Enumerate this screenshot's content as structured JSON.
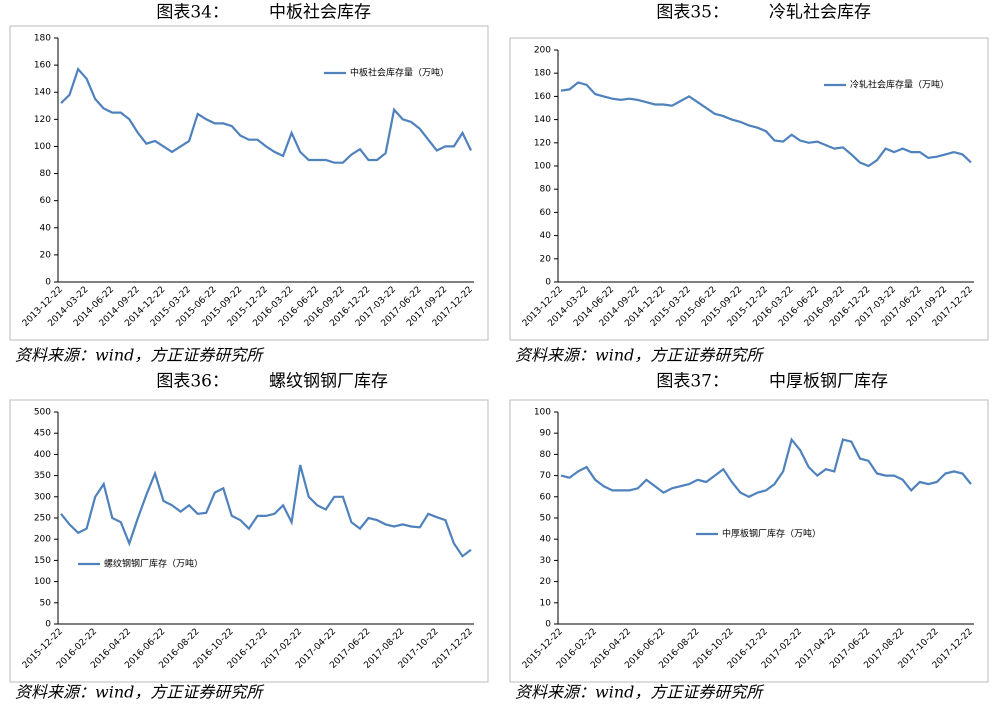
{
  "chart_data": [
    {
      "type": "line",
      "figure_label": "图表34：",
      "title": "中板社会库存",
      "source": "资料来源：wind，方正证券研究所",
      "categories": [
        "2013-12-22",
        null,
        null,
        "2014-03-22",
        null,
        null,
        "2014-06-22",
        null,
        null,
        "2014-09-22",
        null,
        null,
        "2014-12-22",
        null,
        null,
        "2015-03-22",
        null,
        null,
        "2015-06-22",
        null,
        null,
        "2015-09-22",
        null,
        null,
        "2015-12-22",
        null,
        null,
        "2016-03-22",
        null,
        null,
        "2016-06-22",
        null,
        null,
        "2016-09-22",
        null,
        null,
        "2016-12-22",
        null,
        null,
        "2017-03-22",
        null,
        null,
        "2017-06-22",
        null,
        null,
        "2017-09-22",
        null,
        null,
        "2017-12-22"
      ],
      "series": [
        {
          "name": "中板社会库存量（万吨）",
          "color": "#4f81bd",
          "values": [
            132,
            138,
            157,
            150,
            135,
            128,
            125,
            125,
            120,
            110,
            102,
            104,
            100,
            96,
            100,
            104,
            124,
            120,
            117,
            117,
            115,
            108,
            105,
            105,
            100,
            96,
            93,
            110,
            96,
            90,
            90,
            90,
            88,
            88,
            94,
            98,
            90,
            90,
            95,
            127,
            120,
            118,
            113,
            105,
            97,
            100,
            100,
            110,
            97
          ]
        }
      ],
      "ylim": [
        0,
        180
      ],
      "yticks": [
        0,
        20,
        40,
        60,
        80,
        100,
        120,
        140,
        160,
        180
      ],
      "legend": "upper right"
    },
    {
      "type": "line",
      "figure_label": "图表35：",
      "title": "冷轧社会库存",
      "source": "资料来源：wind，方正证券研究所",
      "categories": [
        "2013-12-22",
        null,
        null,
        "2014-03-22",
        null,
        null,
        "2014-06-22",
        null,
        null,
        "2014-09-22",
        null,
        null,
        "2014-12-22",
        null,
        null,
        "2015-03-22",
        null,
        null,
        "2015-06-22",
        null,
        null,
        "2015-09-22",
        null,
        null,
        "2015-12-22",
        null,
        null,
        "2016-03-22",
        null,
        null,
        "2016-06-22",
        null,
        null,
        "2016-09-22",
        null,
        null,
        "2016-12-22",
        null,
        null,
        "2017-03-22",
        null,
        null,
        "2017-06-22",
        null,
        null,
        "2017-09-22",
        null,
        null,
        "2017-12-22"
      ],
      "series": [
        {
          "name": "冷轧社会库存量（万吨）",
          "color": "#4f81bd",
          "values": [
            165,
            166,
            172,
            170,
            162,
            160,
            158,
            157,
            158,
            157,
            155,
            153,
            153,
            152,
            156,
            160,
            155,
            150,
            145,
            143,
            140,
            138,
            135,
            133,
            130,
            122,
            121,
            127,
            122,
            120,
            121,
            118,
            115,
            116,
            110,
            103,
            100,
            105,
            115,
            112,
            115,
            112,
            112,
            107,
            108,
            110,
            112,
            110,
            103
          ]
        }
      ],
      "ylim": [
        0,
        200
      ],
      "yticks": [
        0,
        20,
        40,
        60,
        80,
        100,
        120,
        140,
        160,
        180,
        200
      ],
      "legend": "upper right"
    },
    {
      "type": "line",
      "figure_label": "图表36：",
      "title": "螺纹钢钢厂库存",
      "source": "资料来源：wind，方正证券研究所",
      "categories": [
        "2015-12-22",
        null,
        null,
        null,
        "2016-02-22",
        null,
        null,
        null,
        "2016-04-22",
        null,
        null,
        null,
        "2016-06-22",
        null,
        null,
        null,
        "2016-08-22",
        null,
        null,
        null,
        "2016-10-22",
        null,
        null,
        null,
        "2016-12-22",
        null,
        null,
        null,
        "2017-02-22",
        null,
        null,
        null,
        "2017-04-22",
        null,
        null,
        null,
        "2017-06-22",
        null,
        null,
        null,
        "2017-08-22",
        null,
        null,
        null,
        "2017-10-22",
        null,
        null,
        null,
        "2017-12-22"
      ],
      "series": [
        {
          "name": "螺纹钢钢厂库存（万吨）",
          "color": "#4f81bd",
          "values": [
            260,
            235,
            215,
            225,
            300,
            330,
            250,
            240,
            190,
            250,
            305,
            355,
            290,
            280,
            265,
            280,
            260,
            262,
            310,
            320,
            255,
            245,
            225,
            255,
            255,
            260,
            280,
            240,
            375,
            300,
            280,
            270,
            300,
            300,
            240,
            225,
            250,
            245,
            235,
            230,
            235,
            230,
            228,
            260,
            252,
            245,
            190,
            160,
            175
          ]
        }
      ],
      "ylim": [
        0,
        500
      ],
      "yticks": [
        0,
        50,
        100,
        150,
        200,
        250,
        300,
        350,
        400,
        450,
        500
      ],
      "legend": "lower left"
    },
    {
      "type": "line",
      "figure_label": "图表37：",
      "title": "中厚板钢厂库存",
      "source": "资料来源：wind，方正证券研究所",
      "categories": [
        "2015-12-22",
        null,
        null,
        null,
        "2016-02-22",
        null,
        null,
        null,
        "2016-04-22",
        null,
        null,
        null,
        "2016-06-22",
        null,
        null,
        null,
        "2016-08-22",
        null,
        null,
        null,
        "2016-10-22",
        null,
        null,
        null,
        "2016-12-22",
        null,
        null,
        null,
        "2017-02-22",
        null,
        null,
        null,
        "2017-04-22",
        null,
        null,
        null,
        "2017-06-22",
        null,
        null,
        null,
        "2017-08-22",
        null,
        null,
        null,
        "2017-10-22",
        null,
        null,
        null,
        "2017-12-22"
      ],
      "series": [
        {
          "name": "中厚板钢厂库存（万吨）",
          "color": "#4f81bd",
          "values": [
            70,
            69,
            72,
            74,
            68,
            65,
            63,
            63,
            63,
            64,
            68,
            65,
            62,
            64,
            65,
            66,
            68,
            67,
            70,
            73,
            67,
            62,
            60,
            62,
            63,
            66,
            72,
            87,
            82,
            74,
            70,
            73,
            72,
            87,
            86,
            78,
            77,
            71,
            70,
            70,
            68,
            63,
            67,
            66,
            67,
            71,
            72,
            71,
            66
          ]
        }
      ],
      "ylim": [
        0,
        100
      ],
      "yticks": [
        0,
        10,
        20,
        30,
        40,
        50,
        60,
        70,
        80,
        90,
        100
      ],
      "legend": "lower center"
    }
  ]
}
